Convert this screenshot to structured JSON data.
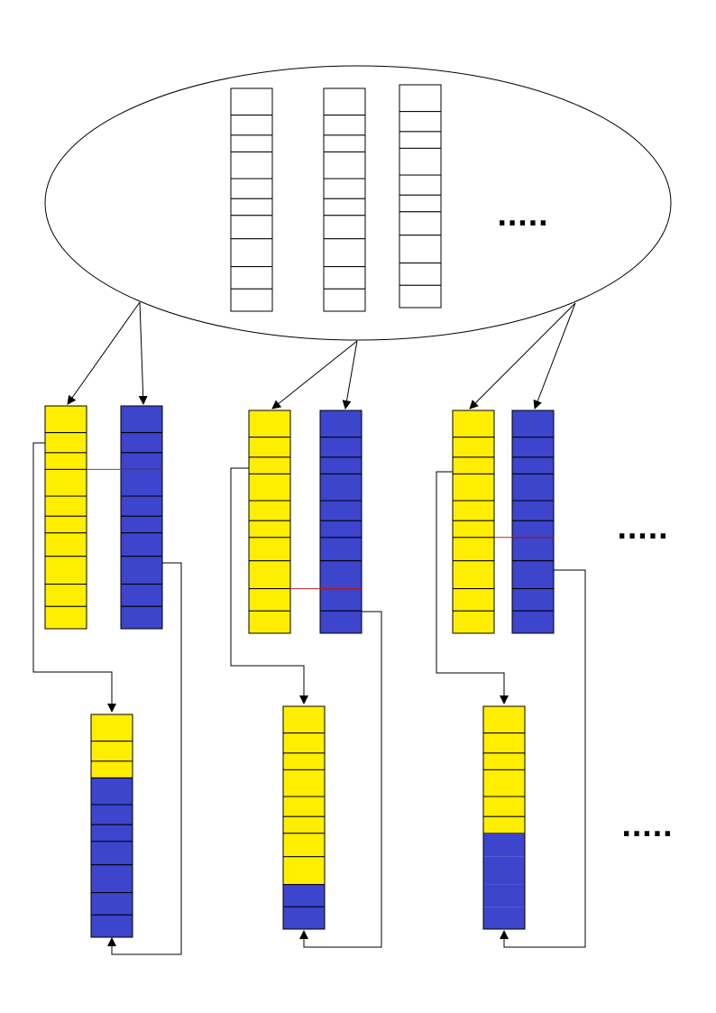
{
  "diagram": {
    "colors": {
      "yellow": "#ffee00",
      "blue": "#3d45cc",
      "outline": "#000000",
      "crossover_line": "#cc2222",
      "background": "#ffffff"
    },
    "population": {
      "shape": "ellipse",
      "chromosomes": [
        {
          "genes": 10,
          "fill": "white"
        },
        {
          "genes": 10,
          "fill": "white"
        },
        {
          "genes": 10,
          "fill": "white"
        }
      ],
      "continuation": "....."
    },
    "parent_pairs": [
      {
        "parent_a_genes": 10,
        "parent_b_genes": 10,
        "parent_a_color": "yellow",
        "parent_b_color": "blue",
        "crossover_after_gene": 3
      },
      {
        "parent_a_genes": 10,
        "parent_b_genes": 10,
        "parent_a_color": "yellow",
        "parent_b_color": "blue",
        "crossover_after_gene": 8
      },
      {
        "parent_a_genes": 10,
        "parent_b_genes": 10,
        "parent_a_color": "yellow",
        "parent_b_color": "blue",
        "crossover_after_gene": 6
      }
    ],
    "offspring": [
      {
        "yellow_genes": 3,
        "blue_genes": 7
      },
      {
        "yellow_genes": 8,
        "blue_genes": 2
      },
      {
        "yellow_genes": 6,
        "blue_genes": 4
      }
    ],
    "parents_continuation": ".....",
    "offspring_continuation": "....."
  }
}
